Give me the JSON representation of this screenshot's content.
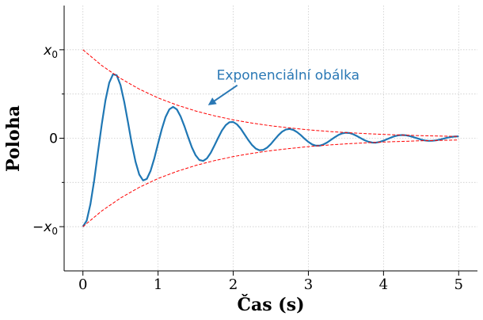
{
  "chart_data": {
    "type": "line",
    "title": "",
    "xlabel": "Čas (s)",
    "ylabel": "Poloha",
    "xlim": [
      -0.25,
      5.25
    ],
    "ylim": [
      -1.5,
      1.5
    ],
    "x_ticks": [
      0,
      1,
      2,
      3,
      4,
      5
    ],
    "x_tick_labels": [
      "0",
      "1",
      "2",
      "3",
      "4",
      "5"
    ],
    "y_ticks": [
      -1,
      0,
      1
    ],
    "y_tick_labels": [
      {
        "base": "−x",
        "sub": "0"
      },
      {
        "base": "0",
        "sub": ""
      },
      {
        "base": "x",
        "sub": "0"
      }
    ],
    "y_minor_ticks": [
      -0.5,
      0.5
    ],
    "grid": true,
    "colors": {
      "signal": "#1f77b4",
      "envelope": "#ff0000",
      "annotation": "#2a78b5",
      "grid": "#cccccc"
    },
    "series": [
      {
        "role": "damped-oscillation",
        "style": "solid",
        "x": [
          0,
          0.05,
          0.1,
          0.15,
          0.2,
          0.25,
          0.3,
          0.35,
          0.4,
          0.45,
          0.5,
          0.55,
          0.6,
          0.65,
          0.7,
          0.75,
          0.8,
          0.85,
          0.9,
          0.95,
          1.0,
          1.05,
          1.1,
          1.15,
          1.2,
          1.25,
          1.3,
          1.35,
          1.4,
          1.45,
          1.5,
          1.55,
          1.6,
          1.65,
          1.7,
          1.75,
          1.8,
          1.85,
          1.9,
          1.95,
          2.0,
          2.05,
          2.1,
          2.15,
          2.2,
          2.25,
          2.3,
          2.35,
          2.4,
          2.45,
          2.5,
          2.55,
          2.6,
          2.65,
          2.7,
          2.75,
          2.8,
          2.85,
          2.9,
          2.95,
          3.0,
          3.05,
          3.1,
          3.15,
          3.2,
          3.25,
          3.3,
          3.35,
          3.4,
          3.45,
          3.5,
          3.55,
          3.6,
          3.65,
          3.7,
          3.75,
          3.8,
          3.85,
          3.9,
          3.95,
          4.0,
          4.05,
          4.1,
          4.15,
          4.2,
          4.25,
          4.3,
          4.35,
          4.4,
          4.45,
          4.5,
          4.55,
          4.6,
          4.65,
          4.7,
          4.75,
          4.8,
          4.85,
          4.9,
          4.95,
          5.0
        ],
        "y": [
          -1.0,
          -0.931,
          -0.746,
          -0.474,
          -0.158,
          0.156,
          0.429,
          0.626,
          0.723,
          0.712,
          0.6,
          0.411,
          0.177,
          -0.062,
          -0.267,
          -0.411,
          -0.477,
          -0.46,
          -0.371,
          -0.228,
          -0.06,
          0.105,
          0.24,
          0.327,
          0.355,
          0.325,
          0.246,
          0.136,
          0.013,
          -0.103,
          -0.193,
          -0.246,
          -0.257,
          -0.228,
          -0.166,
          -0.083,
          0.005,
          0.087,
          0.148,
          0.181,
          0.184,
          0.157,
          0.108,
          0.044,
          -0.02,
          -0.077,
          -0.117,
          -0.136,
          -0.132,
          -0.107,
          -0.066,
          -0.016,
          0.033,
          0.073,
          0.098,
          0.105,
          0.094,
          0.069,
          0.034,
          -0.006,
          -0.042,
          -0.07,
          -0.084,
          -0.084,
          -0.071,
          -0.048,
          -0.019,
          0.011,
          0.037,
          0.055,
          0.062,
          0.058,
          0.044,
          0.023,
          -0.001,
          -0.023,
          -0.04,
          -0.049,
          -0.05,
          -0.042,
          -0.028,
          -0.01,
          0.008,
          0.023,
          0.033,
          0.036,
          0.033,
          0.024,
          0.012,
          -0.002,
          -0.015,
          -0.025,
          -0.03,
          -0.029,
          -0.024,
          -0.015,
          -0.005,
          0.006,
          0.014,
          0.019,
          0.021
        ]
      },
      {
        "role": "upper-envelope",
        "style": "dashed",
        "x": [
          0,
          0.25,
          0.5,
          0.75,
          1.0,
          1.25,
          1.5,
          1.75,
          2.0,
          2.25,
          2.5,
          2.75,
          3.0,
          3.25,
          3.5,
          3.75,
          4.0,
          4.25,
          4.5,
          4.75,
          5.0
        ],
        "y": [
          1.0,
          0.822,
          0.676,
          0.555,
          0.456,
          0.375,
          0.308,
          0.253,
          0.208,
          0.171,
          0.141,
          0.116,
          0.095,
          0.078,
          0.064,
          0.053,
          0.043,
          0.036,
          0.029,
          0.024,
          0.02
        ]
      },
      {
        "role": "lower-envelope",
        "style": "dashed",
        "x": [
          0,
          0.25,
          0.5,
          0.75,
          1.0,
          1.25,
          1.5,
          1.75,
          2.0,
          2.25,
          2.5,
          2.75,
          3.0,
          3.25,
          3.5,
          3.75,
          4.0,
          4.25,
          4.5,
          4.75,
          5.0
        ],
        "y": [
          -1.0,
          -0.822,
          -0.676,
          -0.555,
          -0.456,
          -0.375,
          -0.308,
          -0.253,
          -0.208,
          -0.171,
          -0.141,
          -0.116,
          -0.095,
          -0.078,
          -0.064,
          -0.053,
          -0.043,
          -0.036,
          -0.029,
          -0.024,
          -0.02
        ]
      }
    ],
    "annotation": {
      "text": "Exponenciální obálka",
      "points_to": {
        "x": 1.67,
        "y": 0.37
      },
      "text_anchor": {
        "x": 1.78,
        "y": 0.67
      }
    }
  }
}
